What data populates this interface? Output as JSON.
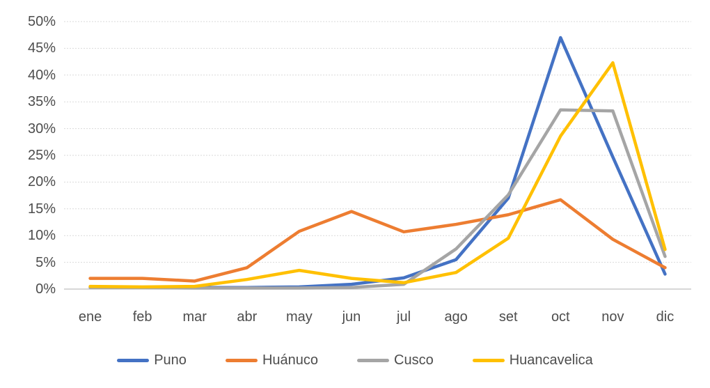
{
  "chart_data": {
    "type": "line",
    "title": "",
    "categories": [
      "ene",
      "feb",
      "mar",
      "abr",
      "may",
      "jun",
      "jul",
      "ago",
      "set",
      "oct",
      "nov",
      "dic"
    ],
    "y_tick_labels": [
      "0%",
      "5%",
      "10%",
      "15%",
      "20%",
      "25%",
      "30%",
      "35%",
      "40%",
      "45%",
      "50%"
    ],
    "ylim": [
      0,
      50
    ],
    "y_step": 5,
    "grid": true,
    "legend_position": "bottom",
    "series": [
      {
        "name": "Puno",
        "color": "#4472C4",
        "values": [
          0.3,
          0.3,
          0.3,
          0.3,
          0.4,
          0.9,
          2.1,
          5.5,
          17.0,
          47.0,
          24.7,
          2.8
        ]
      },
      {
        "name": "Huánuco",
        "color": "#ED7D31",
        "values": [
          2.0,
          2.0,
          1.5,
          4.0,
          10.8,
          14.5,
          10.7,
          12.1,
          13.9,
          16.7,
          9.3,
          4.0
        ]
      },
      {
        "name": "Cusco",
        "color": "#A5A5A5",
        "values": [
          0.3,
          0.3,
          0.2,
          0.2,
          0.2,
          0.3,
          0.9,
          7.5,
          17.6,
          33.5,
          33.3,
          6.1
        ]
      },
      {
        "name": "Huancavelica",
        "color": "#FFC000",
        "values": [
          0.5,
          0.4,
          0.5,
          1.8,
          3.5,
          2.0,
          1.2,
          3.1,
          9.5,
          28.6,
          42.3,
          7.4
        ]
      }
    ],
    "colors": {
      "gridline": "#D9D9D9",
      "axis_line": "#BFBFBF",
      "axis_text": "#4d4d4d"
    }
  }
}
